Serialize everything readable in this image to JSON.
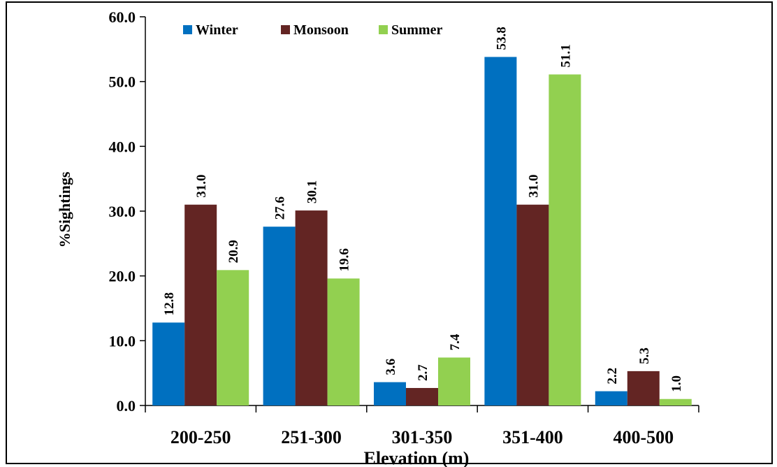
{
  "chart_data": {
    "type": "bar",
    "xlabel": "Elevation (m)",
    "ylabel": "%Sightings",
    "ylim": [
      0,
      60
    ],
    "yticks": [
      "0.0",
      "10.0",
      "20.0",
      "30.0",
      "40.0",
      "50.0",
      "60.0"
    ],
    "grid": false,
    "legend_position": "top",
    "categories": [
      "200-250",
      "251-300",
      "301-350",
      "351-400",
      "400-500"
    ],
    "series": [
      {
        "name": "Winter",
        "color": "#0070C0",
        "values": [
          12.8,
          27.6,
          3.6,
          53.8,
          2.2
        ],
        "labels": [
          "12.8",
          "27.6",
          "3.6",
          "53.8",
          "2.2"
        ]
      },
      {
        "name": "Monsoon",
        "color": "#632523",
        "values": [
          31.0,
          30.1,
          2.7,
          31.0,
          5.3
        ],
        "labels": [
          "31.0",
          "30.1",
          "2.7",
          "31.0",
          "5.3"
        ]
      },
      {
        "name": "Summer",
        "color": "#92D050",
        "values": [
          20.9,
          19.6,
          7.4,
          51.1,
          1.0
        ],
        "labels": [
          "20.9",
          "19.6",
          "7.4",
          "51.1",
          "1.0"
        ]
      }
    ]
  }
}
